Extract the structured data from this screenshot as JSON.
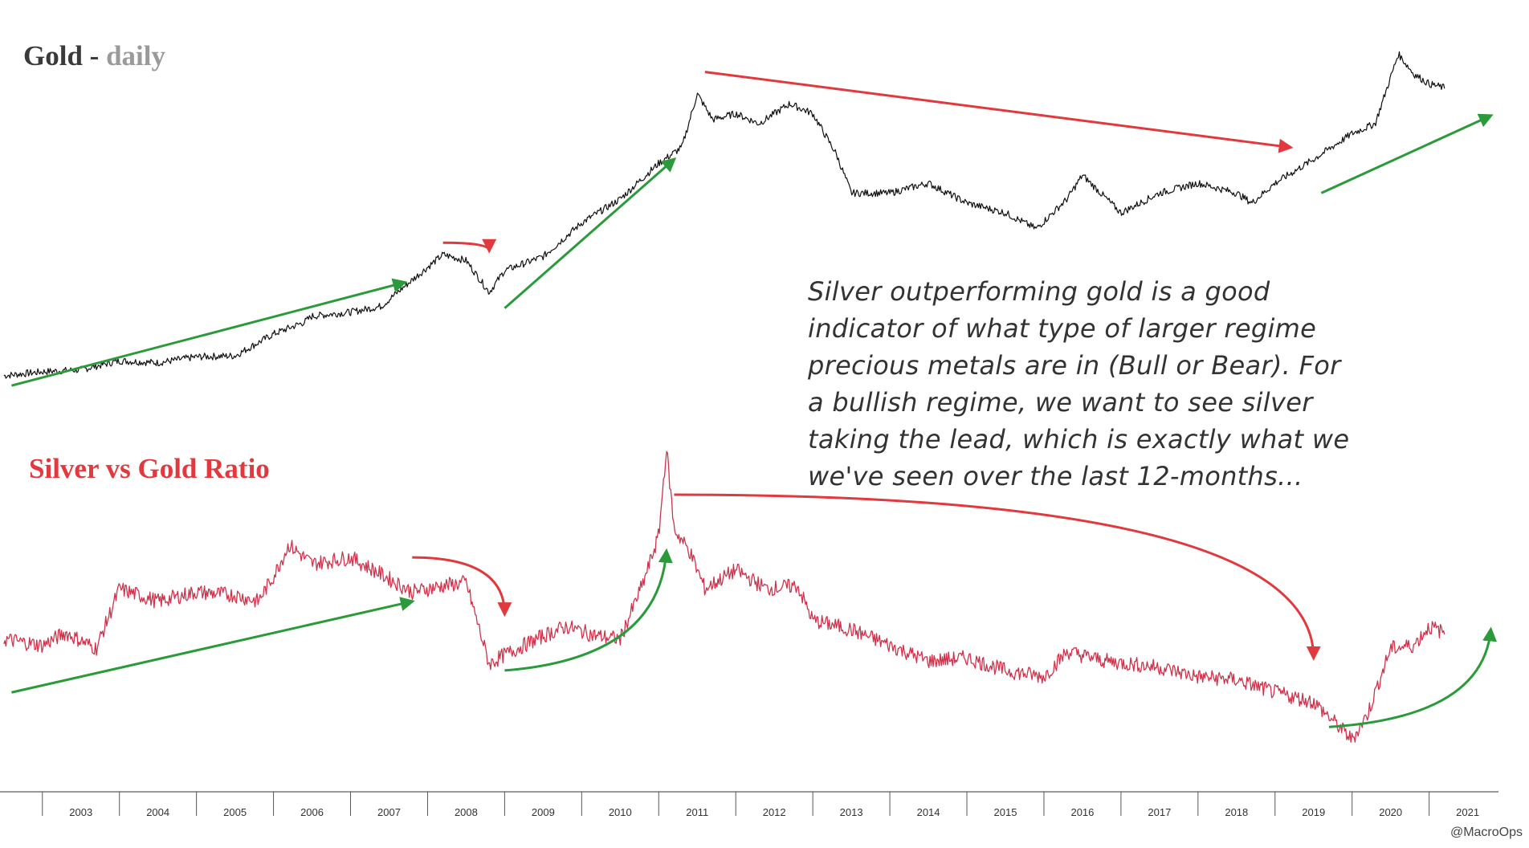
{
  "chart_data": [
    {
      "type": "line",
      "title": "Gold - daily",
      "title_main": "Gold",
      "title_sub": "daily",
      "color": "#111111",
      "x": [
        2002.5,
        2003.0,
        2003.5,
        2004.0,
        2004.5,
        2005.0,
        2005.5,
        2006.0,
        2006.4,
        2006.5,
        2007.0,
        2007.4,
        2007.7,
        2008.2,
        2008.5,
        2008.8,
        2009.0,
        2009.5,
        2010.0,
        2010.5,
        2011.0,
        2011.3,
        2011.5,
        2011.7,
        2012.0,
        2012.3,
        2012.7,
        2013.0,
        2013.3,
        2013.5,
        2014.0,
        2014.5,
        2015.0,
        2015.5,
        2015.9,
        2016.3,
        2016.5,
        2017.0,
        2017.5,
        2018.0,
        2018.5,
        2018.7,
        2019.0,
        2019.5,
        2020.0,
        2020.3,
        2020.6,
        2020.8,
        2021.0,
        2021.2
      ],
      "values": [
        330,
        350,
        360,
        405,
        395,
        425,
        430,
        540,
        600,
        630,
        650,
        680,
        780,
        940,
        910,
        750,
        860,
        930,
        1100,
        1220,
        1400,
        1480,
        1750,
        1620,
        1650,
        1600,
        1700,
        1650,
        1450,
        1250,
        1250,
        1300,
        1200,
        1150,
        1070,
        1220,
        1340,
        1150,
        1250,
        1300,
        1250,
        1200,
        1300,
        1420,
        1550,
        1600,
        1950,
        1850,
        1800,
        1780
      ],
      "ylim": [
        200,
        2000
      ],
      "trend_arrows": [
        {
          "color": "#2a9a3a",
          "from": [
            2002.6,
            280
          ],
          "to": [
            2007.7,
            800
          ]
        },
        {
          "color": "#e0393e",
          "curved": true,
          "from": [
            2008.2,
            1000
          ],
          "to": [
            2008.8,
            960
          ]
        },
        {
          "color": "#2a9a3a",
          "from": [
            2009.0,
            670
          ],
          "to": [
            2011.2,
            1420
          ]
        },
        {
          "color": "#e0393e",
          "from": [
            2011.6,
            1860
          ],
          "to": [
            2019.2,
            1480
          ]
        },
        {
          "color": "#2a9a3a",
          "from": [
            2019.6,
            1250
          ],
          "to": [
            2021.8,
            1640
          ]
        }
      ]
    },
    {
      "type": "line",
      "title": "Silver vs Gold Ratio",
      "color": "#d0324c",
      "x": [
        2002.5,
        2003.0,
        2003.3,
        2003.7,
        2004.0,
        2004.5,
        2005.0,
        2005.5,
        2005.8,
        2006.0,
        2006.2,
        2006.5,
        2007.0,
        2007.3,
        2007.8,
        2008.2,
        2008.5,
        2008.8,
        2009.0,
        2009.5,
        2009.8,
        2010.2,
        2010.5,
        2010.8,
        2011.0,
        2011.1,
        2011.2,
        2011.4,
        2011.6,
        2012.0,
        2012.4,
        2012.8,
        2013.0,
        2013.5,
        2014.0,
        2014.5,
        2015.0,
        2015.5,
        2016.0,
        2016.3,
        2016.8,
        2017.5,
        2018.0,
        2018.5,
        2019.0,
        2019.5,
        2020.0,
        2020.2,
        2020.5,
        2020.8,
        2021.0,
        2021.2
      ],
      "values": [
        62,
        60,
        64,
        59,
        78,
        74,
        77,
        76,
        74,
        82,
        92,
        86,
        88,
        84,
        77,
        79,
        80,
        54,
        57,
        63,
        66,
        63,
        62,
        80,
        95,
        123,
        97,
        90,
        78,
        84,
        78,
        79,
        68,
        65,
        60,
        55,
        56,
        52,
        50,
        58,
        55,
        53,
        50,
        49,
        45,
        42,
        30,
        38,
        59,
        60,
        66,
        64
      ],
      "ylim": [
        20,
        130
      ],
      "trend_arrows": [
        {
          "color": "#2a9a3a",
          "from": [
            2002.6,
            45
          ],
          "to": [
            2007.8,
            74
          ]
        },
        {
          "color": "#e0393e",
          "curved": true,
          "from": [
            2007.8,
            88
          ],
          "to": [
            2009.0,
            70
          ]
        },
        {
          "color": "#2a9a3a",
          "curved": true,
          "from": [
            2009.0,
            52
          ],
          "to": [
            2011.1,
            90
          ]
        },
        {
          "color": "#e0393e",
          "curved": true,
          "from": [
            2011.2,
            108
          ],
          "to": [
            2019.5,
            56
          ]
        },
        {
          "color": "#2a9a3a",
          "curved": true,
          "from": [
            2019.7,
            34
          ],
          "to": [
            2021.8,
            65
          ]
        }
      ]
    }
  ],
  "x_axis": {
    "tick_labels": [
      "2003",
      "2004",
      "2005",
      "2006",
      "2007",
      "2008",
      "2009",
      "2010",
      "2011",
      "2012",
      "2013",
      "2014",
      "2015",
      "2016",
      "2017",
      "2018",
      "2019",
      "2020",
      "2021"
    ]
  },
  "annotation": {
    "lines": [
      "Silver outperforming gold is a good",
      "indicator of what type of larger regime",
      "precious metals are in (Bull or Bear). For",
      "a bullish regime, we want to see silver",
      "taking the lead, which is exactly what we",
      "we've seen over the last 12-months..."
    ]
  },
  "credit": "@MacroOps"
}
